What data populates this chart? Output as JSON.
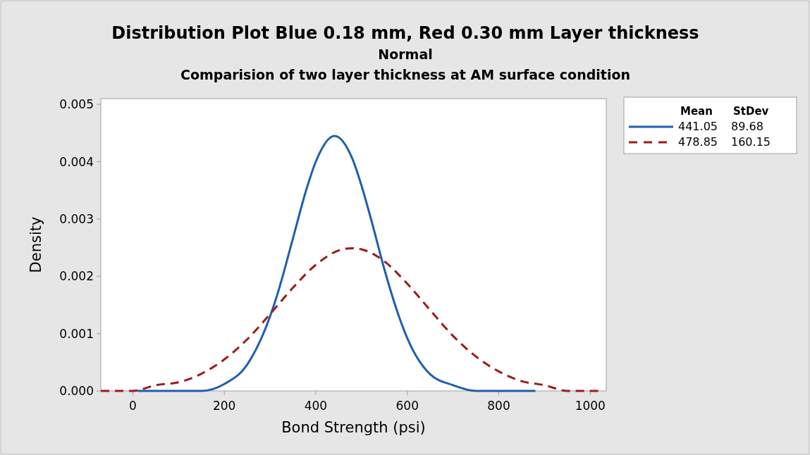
{
  "chart_data": {
    "type": "line",
    "title": "Distribution Plot Blue 0.18 mm, Red 0.30 mm Layer thickness",
    "subtitle": "Normal",
    "annotations": [
      "Comparision of two layer thickness at AM surface condition"
    ],
    "xlabel": "Bond Strength (psi)",
    "ylabel": "Density",
    "legend_title": "Mean StDev",
    "legend": "right",
    "grid": false,
    "marker": "none",
    "xlim": [
      -70,
      1035
    ],
    "xticks": [
      0,
      200,
      400,
      600,
      800,
      1000
    ],
    "ylim": [
      0,
      0.0051
    ],
    "yticks": [
      {
        "value": 0,
        "label": "0.000"
      },
      {
        "value": 0.001,
        "label": "0.001"
      },
      {
        "value": 0.002,
        "label": "0.002"
      },
      {
        "value": 0.003,
        "label": "0.003"
      },
      {
        "value": 0.004,
        "label": "0.004"
      },
      {
        "value": 0.005,
        "label": "0.005"
      }
    ],
    "series": [
      {
        "name": "441.05 89.68",
        "color": "#1f5fad",
        "line_style": "solid",
        "x": [
          10,
          100,
          150,
          200,
          250,
          300,
          320,
          350,
          380,
          400,
          441,
          480,
          500,
          520,
          550,
          580,
          600,
          650,
          700,
          750,
          880
        ],
        "values": [
          0,
          0,
          0,
          0.00012,
          0.00046,
          0.0013,
          0.00179,
          0.00266,
          0.00353,
          0.004,
          0.00445,
          0.00405,
          0.00358,
          0.00302,
          0.00212,
          0.00134,
          0.00092,
          0.00029,
          0.0001,
          0,
          0
        ]
      },
      {
        "name": "478.85 160.15",
        "color": "#9b1c1c",
        "line_style": "dashed",
        "x": [
          -70,
          0,
          50,
          100,
          150,
          200,
          250,
          300,
          350,
          400,
          450,
          479,
          500,
          550,
          600,
          650,
          700,
          750,
          800,
          850,
          900,
          950,
          1020
        ],
        "values": [
          0,
          0,
          0.0001,
          0.00015,
          0.0003,
          0.00055,
          0.0009,
          0.00134,
          0.0018,
          0.0022,
          0.00245,
          0.00249,
          0.00247,
          0.00226,
          0.00187,
          0.00141,
          0.00096,
          0.0006,
          0.00034,
          0.00017,
          0.0001,
          0,
          0
        ]
      }
    ]
  }
}
